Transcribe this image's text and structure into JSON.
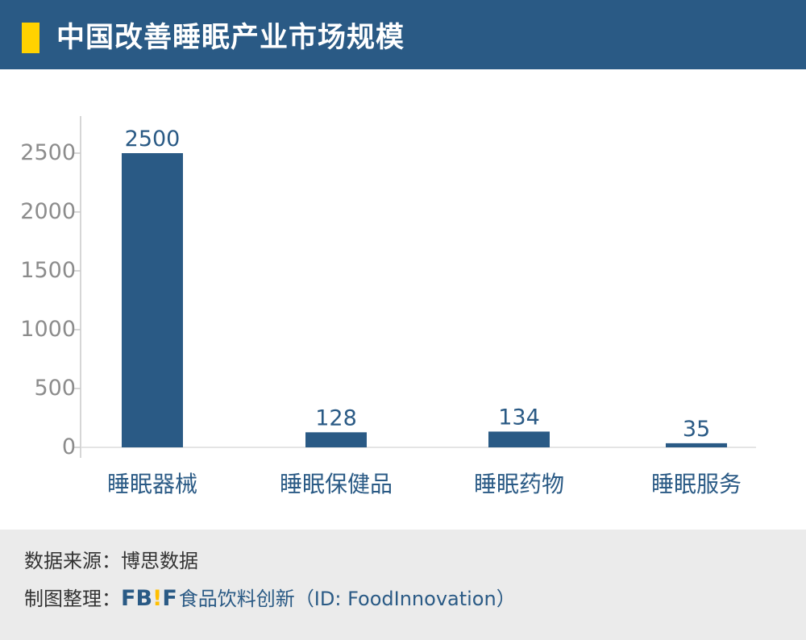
{
  "header": {
    "title": "中国改善睡眠产业市场规模",
    "accent_color": "#ffd200",
    "background_color": "#2a5a85"
  },
  "chart_data": {
    "type": "bar",
    "title": "中国改善睡眠产业市场规模",
    "categories": [
      "睡眠器械",
      "睡眠保健品",
      "睡眠药物",
      "睡眠服务"
    ],
    "values": [
      2500,
      128,
      134,
      35
    ],
    "data_labels": [
      "2500",
      "128",
      "134",
      "35"
    ],
    "ylim": [
      0,
      2500
    ],
    "yticks": [
      0,
      500,
      1000,
      1500,
      2000,
      2500
    ],
    "ytick_labels": [
      "0",
      "500",
      "1000",
      "1500",
      "2000",
      "2500"
    ],
    "grid": false,
    "bar_color": "#2a5a85"
  },
  "footer": {
    "source_label": "数据来源：",
    "source_value": "博思数据",
    "maker_label": "制图整理：",
    "logo_text_1": "FB",
    "logo_text_bang": "!",
    "logo_text_2": "F",
    "maker_name": "食品饮料创新",
    "maker_id": "（ID: FoodInnovation）"
  }
}
